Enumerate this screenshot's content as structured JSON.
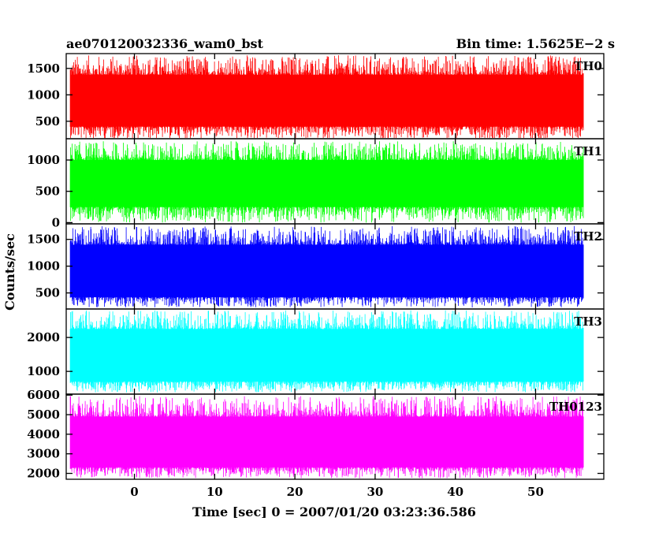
{
  "chart_data": {
    "type": "line",
    "title": "ae070120032336_wam0_bst",
    "subtitle": "Bin time: 1.5625E−2 s",
    "xlabel": "Time [sec] 0 = 2007/01/20 03:23:36.586",
    "ylabel": "Counts/sec",
    "xlim": [
      -8.5,
      58.5
    ],
    "x_ticks": [
      0,
      10,
      20,
      30,
      40,
      50
    ],
    "x_tick_labels": [
      "0",
      "10",
      "20",
      "30",
      "40",
      "50"
    ],
    "data_x_range": [
      -8.0,
      56.0
    ],
    "grid": false,
    "panels": [
      {
        "name": "TH0",
        "color": "#ff0000",
        "ylim": [
          170,
          1780
        ],
        "y_ticks": [
          500,
          1000,
          1500
        ],
        "y_tick_labels": [
          "500",
          "1000",
          "1500"
        ],
        "band_low": 400,
        "band_high": 1380,
        "peak_low": 150,
        "peak_high": 1750
      },
      {
        "name": "TH1",
        "color": "#00ff00",
        "ylim": [
          -20,
          1340
        ],
        "y_ticks": [
          0,
          500,
          1000
        ],
        "y_tick_labels": [
          "0",
          "500",
          "1000"
        ],
        "band_low": 250,
        "band_high": 1000,
        "peak_low": 0,
        "peak_high": 1300
      },
      {
        "name": "TH2",
        "color": "#0000ff",
        "ylim": [
          200,
          1790
        ],
        "y_ticks": [
          500,
          1000,
          1500
        ],
        "y_tick_labels": [
          "500",
          "1000",
          "1500"
        ],
        "band_low": 420,
        "band_high": 1400,
        "peak_low": 230,
        "peak_high": 1750
      },
      {
        "name": "TH3",
        "color": "#00ffff",
        "ylim": [
          330,
          2840
        ],
        "y_ticks": [
          1000,
          2000
        ],
        "y_tick_labels": [
          "1000",
          "2000"
        ],
        "band_low": 700,
        "band_high": 2250,
        "peak_low": 380,
        "peak_high": 2800
      },
      {
        "name": "TH0123",
        "color": "#ff00ff",
        "ylim": [
          1700,
          6050
        ],
        "y_ticks": [
          2000,
          3000,
          4000,
          5000,
          6000
        ],
        "y_tick_labels": [
          "2000",
          "3000",
          "4000",
          "5000",
          "6000"
        ],
        "band_low": 2300,
        "band_high": 4900,
        "peak_low": 1750,
        "peak_high": 5950
      }
    ]
  }
}
